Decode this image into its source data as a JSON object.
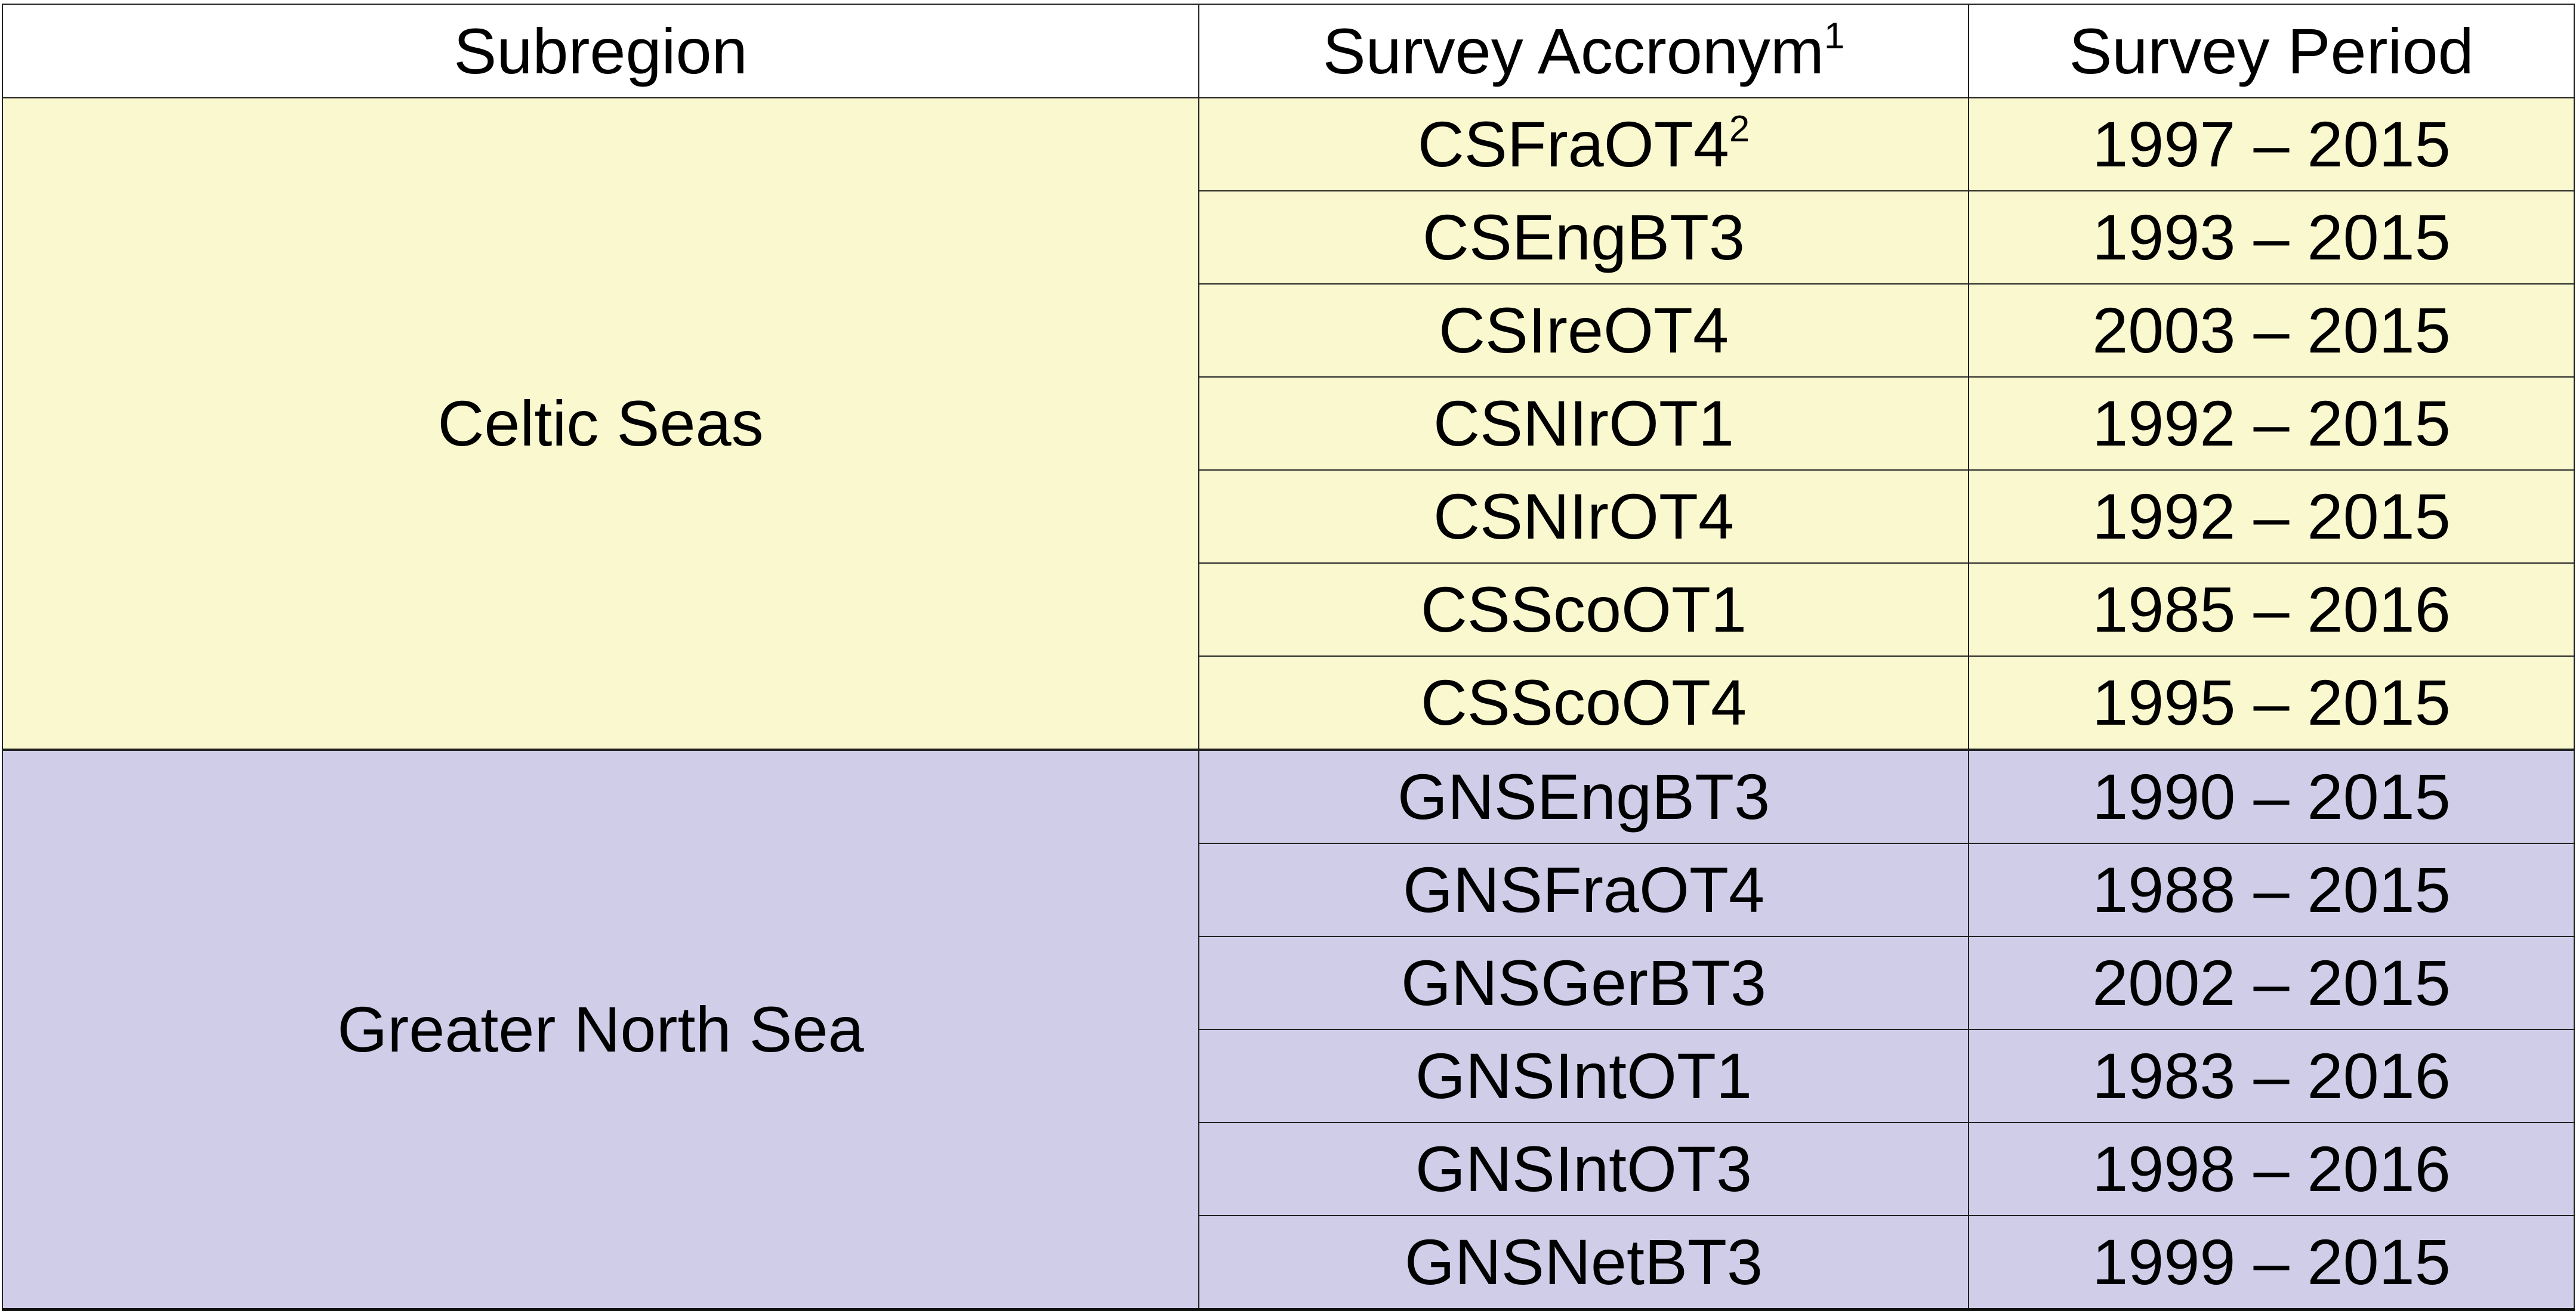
{
  "table": {
    "headers": {
      "subregion": "Subregion",
      "acronym": "Survey Accronym",
      "acronym_footnote": "1",
      "period": "Survey Period"
    },
    "colors": {
      "celtic_seas": "#FAF8CF",
      "greater_north_sea": "#CFCDE8"
    },
    "groups": [
      {
        "subregion": "Celtic Seas",
        "rows": [
          {
            "acronym": "CSFraOT4",
            "footnote": "2",
            "period": "1997 – 2015"
          },
          {
            "acronym": "CSEngBT3",
            "period": "1993 – 2015"
          },
          {
            "acronym": "CSIreOT4",
            "period": "2003 – 2015"
          },
          {
            "acronym": "CSNIrOT1",
            "period": "1992 – 2015"
          },
          {
            "acronym": "CSNIrOT4",
            "period": "1992 – 2015"
          },
          {
            "acronym": "CSScoOT1",
            "period": "1985 – 2016"
          },
          {
            "acronym": "CSScoOT4",
            "period": "1995 – 2015"
          }
        ]
      },
      {
        "subregion": "Greater North Sea",
        "rows": [
          {
            "acronym": "GNSEngBT3",
            "period": "1990 – 2015"
          },
          {
            "acronym": "GNSFraOT4",
            "period": "1988 – 2015"
          },
          {
            "acronym": "GNSGerBT3",
            "period": "2002 – 2015"
          },
          {
            "acronym": "GNSIntOT1",
            "period": "1983 – 2016"
          },
          {
            "acronym": "GNSIntOT3",
            "period": "1998 – 2016"
          },
          {
            "acronym": "GNSNetBT3",
            "period": "1999 – 2015"
          }
        ]
      }
    ]
  }
}
